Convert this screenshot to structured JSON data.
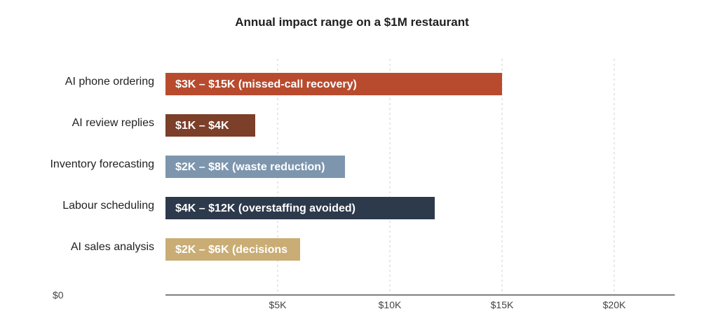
{
  "chart_data": {
    "type": "bar",
    "orientation": "horizontal",
    "title": "Annual impact range on a $1M restaurant",
    "xlabel": "",
    "ylabel": "",
    "xlim": [
      0,
      22700
    ],
    "grid": true,
    "legend": "none",
    "origin_label": "$0",
    "x_ticks": [
      {
        "value": 5000,
        "label": "$5K"
      },
      {
        "value": 10000,
        "label": "$10K"
      },
      {
        "value": 15000,
        "label": "$15K"
      },
      {
        "value": 20000,
        "label": "$20K"
      }
    ],
    "bars": [
      {
        "category": "AI phone ordering",
        "value": 15000,
        "label": "$3K – $15K (missed-call recovery)",
        "color": "#b84b2e"
      },
      {
        "category": "AI review replies",
        "value": 4000,
        "label": "$1K – $4K",
        "color": "#7b3f2a"
      },
      {
        "category": "Inventory forecasting",
        "value": 8000,
        "label": "$2K – $8K (waste reduction)",
        "color": "#7d95ad"
      },
      {
        "category": "Labour scheduling",
        "value": 12000,
        "label": "$4K – $12K (overstaffing avoided)",
        "color": "#2d3a4c"
      },
      {
        "category": "AI sales analysis",
        "value": 6000,
        "label": "$2K – $6K (decisions",
        "color": "#c9ad74"
      }
    ]
  }
}
